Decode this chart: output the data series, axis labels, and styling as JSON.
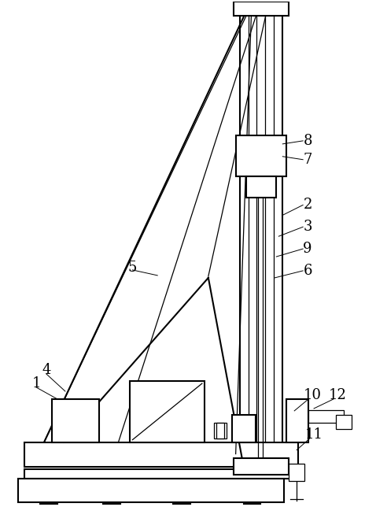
{
  "background_color": "#ffffff",
  "line_color": "#000000",
  "lw": 1.5,
  "tlw": 0.9,
  "figsize": [
    4.78,
    6.58
  ],
  "dpi": 100
}
